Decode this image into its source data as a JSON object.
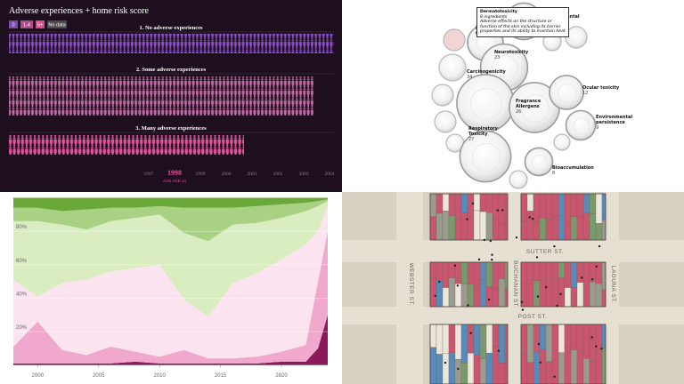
{
  "experiences": {
    "title": "Adverse experiences + home risk score",
    "legend": [
      "0",
      "1-4",
      "5+",
      "No data"
    ],
    "groups": [
      "1. No adverse experiences",
      "2. Some adverse experiences",
      "3. Many adverse experiences"
    ],
    "years": [
      1997,
      1998,
      1999,
      2000,
      2001,
      2002,
      2003,
      2004
    ],
    "selected_note": "AVG AGE 14"
  },
  "toxicity": {
    "tooltip": {
      "title": "Dermatotoxicity",
      "subtitle": "8 ingredients",
      "text": "Adverse effects on the structure or function of the skin including its barrier properties and its ability to maintain heat"
    },
    "nodes": [
      {
        "label": "Reproductive toxicity"
      },
      {
        "label": "Developmental toxicity",
        "value": 14
      },
      {
        "label": "Neurotoxicity",
        "value": 23
      },
      {
        "label": "Carcinogenicity",
        "value": 34
      },
      {
        "label": "Fragrance Allergens",
        "value": 26
      },
      {
        "label": "Ocular toxicity",
        "value": 12
      },
      {
        "label": "Environmental persistence",
        "value": 9
      },
      {
        "label": "Respiratory Toxicity",
        "value": 27
      },
      {
        "label": "Bioaccumulation",
        "value": 8
      }
    ]
  },
  "chart_data": {
    "type": "stacked_area",
    "x": [
      1998,
      2000,
      2002,
      2004,
      2006,
      2008,
      2010,
      2012,
      2014,
      2016,
      2018,
      2020,
      2022,
      2023,
      2023.8
    ],
    "series": [
      {
        "color": "#8b1a5a",
        "values": [
          1,
          1,
          1,
          1,
          1,
          2,
          1,
          1,
          1,
          1,
          1,
          2,
          2,
          10,
          30
        ]
      },
      {
        "color": "#f0a8cc",
        "values": [
          10,
          25,
          8,
          5,
          10,
          6,
          4,
          8,
          3,
          3,
          4,
          6,
          10,
          40,
          50
        ]
      },
      {
        "color": "#fbe4ef",
        "values": [
          40,
          15,
          40,
          45,
          45,
          50,
          55,
          30,
          25,
          45,
          50,
          55,
          60,
          30,
          15
        ]
      },
      {
        "color": "#d9edc0",
        "values": [
          35,
          45,
          35,
          30,
          30,
          30,
          30,
          40,
          45,
          35,
          30,
          25,
          20,
          15,
          3
        ]
      },
      {
        "color": "#a9d184",
        "values": [
          8,
          8,
          8,
          12,
          8,
          6,
          5,
          15,
          20,
          10,
          10,
          8,
          5,
          3,
          1
        ]
      },
      {
        "color": "#6aa83a",
        "values": [
          6,
          6,
          8,
          7,
          6,
          6,
          5,
          6,
          6,
          6,
          5,
          4,
          3,
          2,
          1
        ]
      }
    ],
    "xlim": [
      1998,
      2023.8
    ],
    "ylim": [
      0,
      100
    ],
    "xticks": [
      2000,
      2005,
      2010,
      2015,
      2020
    ],
    "yticks": [
      {
        "value": 20,
        "label": "20%"
      },
      {
        "value": 40,
        "label": "40%"
      },
      {
        "value": 60,
        "label": "60%"
      },
      {
        "value": 80,
        "label": "80%"
      }
    ],
    "grid": true
  },
  "map": {
    "streets": [
      "SUTTER ST.",
      "POST ST.",
      "WEBSTER ST.",
      "BUCHANAN ST.",
      "LAGUNA ST."
    ]
  }
}
